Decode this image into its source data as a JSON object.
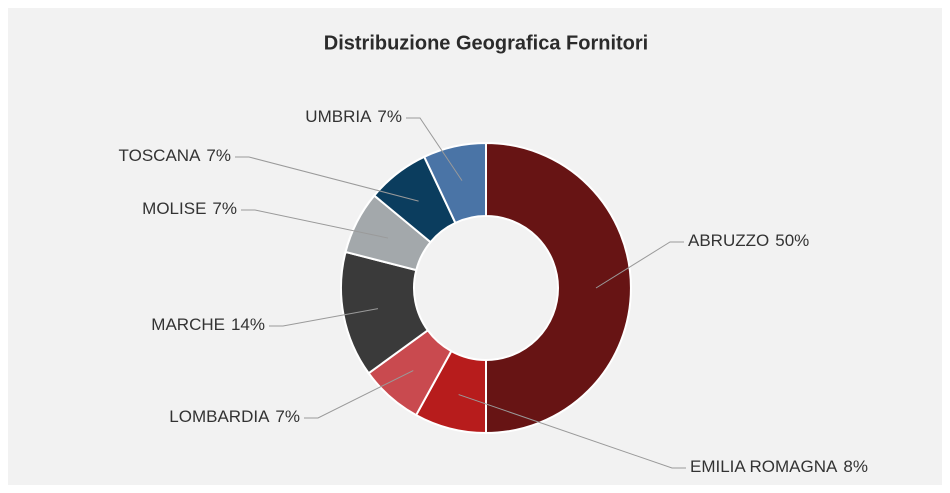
{
  "chart_data": {
    "type": "donut",
    "title": "Distribuzione Geografica Fornitori",
    "categories": [
      "ABRUZZO",
      "EMILIA ROMAGNA",
      "LOMBARDIA",
      "MARCHE",
      "MOLISE",
      "TOSCANA",
      "UMBRIA"
    ],
    "values": [
      50,
      8,
      7,
      14,
      7,
      7,
      7
    ],
    "value_labels": [
      "50%",
      "8%",
      "7%",
      "14%",
      "7%",
      "7%",
      "7%"
    ],
    "colors": [
      "#671414",
      "#b71c1c",
      "#c94a4f",
      "#3a3a3a",
      "#a3a8ab",
      "#0b3d5e",
      "#4a74a6"
    ]
  }
}
